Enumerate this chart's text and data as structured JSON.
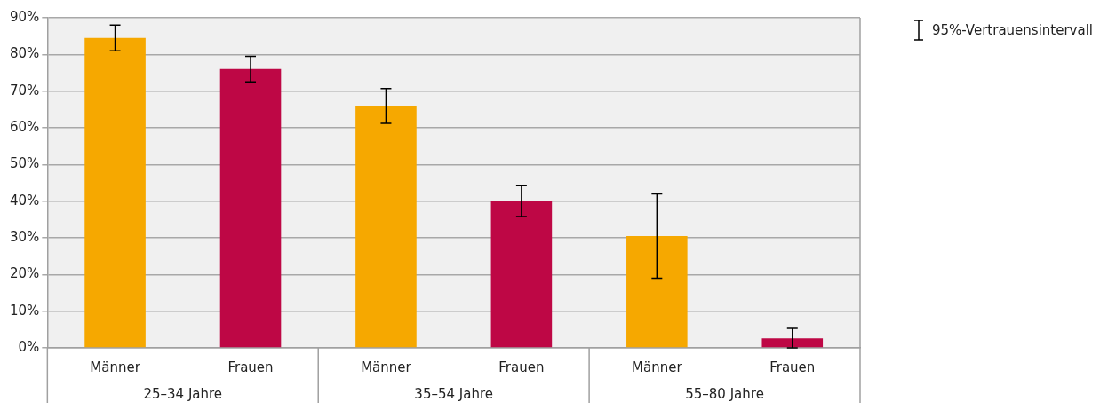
{
  "chart_data": {
    "type": "bar",
    "categories": [
      "Männer",
      "Frauen",
      "Männer",
      "Frauen",
      "Männer",
      "Frauen"
    ],
    "annotations": [
      "25–34 Jahre",
      "35–54 Jahre",
      "55–80 Jahre"
    ],
    "values": [
      84.5,
      76.0,
      66.0,
      40.0,
      30.5,
      2.6
    ],
    "colors": [
      "#f6a800",
      "#be0745",
      "#f6a800",
      "#be0745",
      "#f6a800",
      "#be0745"
    ],
    "errors": [
      [
        81,
        88
      ],
      [
        72.5,
        79.5
      ],
      [
        61.2,
        70.7
      ],
      [
        35.8,
        44.2
      ],
      [
        19,
        42
      ],
      [
        0,
        5.3
      ]
    ],
    "ylim": [
      0,
      90
    ],
    "yticks": [
      {
        "value": 0,
        "label": "0%"
      },
      {
        "value": 10,
        "label": "10%"
      },
      {
        "value": 20,
        "label": "20%"
      },
      {
        "value": 30,
        "label": "30%"
      },
      {
        "value": 40,
        "label": "40%"
      },
      {
        "value": 50,
        "label": "50%"
      },
      {
        "value": 60,
        "label": "60%"
      },
      {
        "value": 70,
        "label": "70%"
      },
      {
        "value": 80,
        "label": "80%"
      },
      {
        "value": 90,
        "label": "90%"
      }
    ],
    "grid": "y",
    "legend_title": "95%-Vertrauensintervall"
  }
}
